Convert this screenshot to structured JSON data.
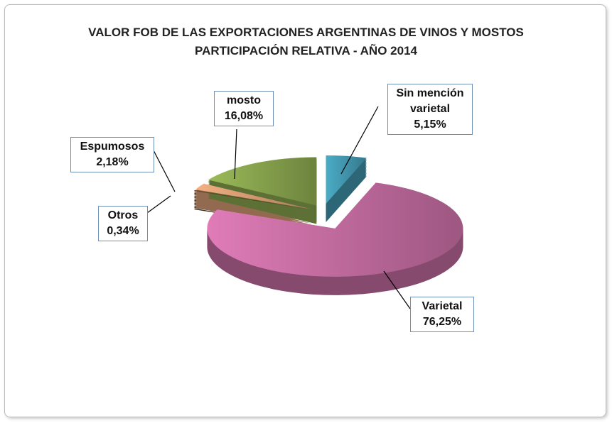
{
  "chart_data": {
    "type": "pie",
    "title": "VALOR FOB DE LAS EXPORTACIONES ARGENTINAS DE VINOS Y MOSTOS",
    "subtitle": "PARTICIPACIÓN RELATIVA - AÑO 2014",
    "categories": [
      "Sin mención varietal",
      "Varietal",
      "Otros",
      "Espumosos",
      "mosto"
    ],
    "values": [
      5.15,
      76.25,
      0.34,
      2.18,
      16.08
    ],
    "value_labels": [
      "5,15%",
      "76,25%",
      "0,34%",
      "2,18%",
      "16,08%"
    ],
    "colors": [
      "#4bacc6",
      "#e07cb8",
      "#6b4a2e",
      "#f4b183",
      "#9bbb59"
    ]
  }
}
